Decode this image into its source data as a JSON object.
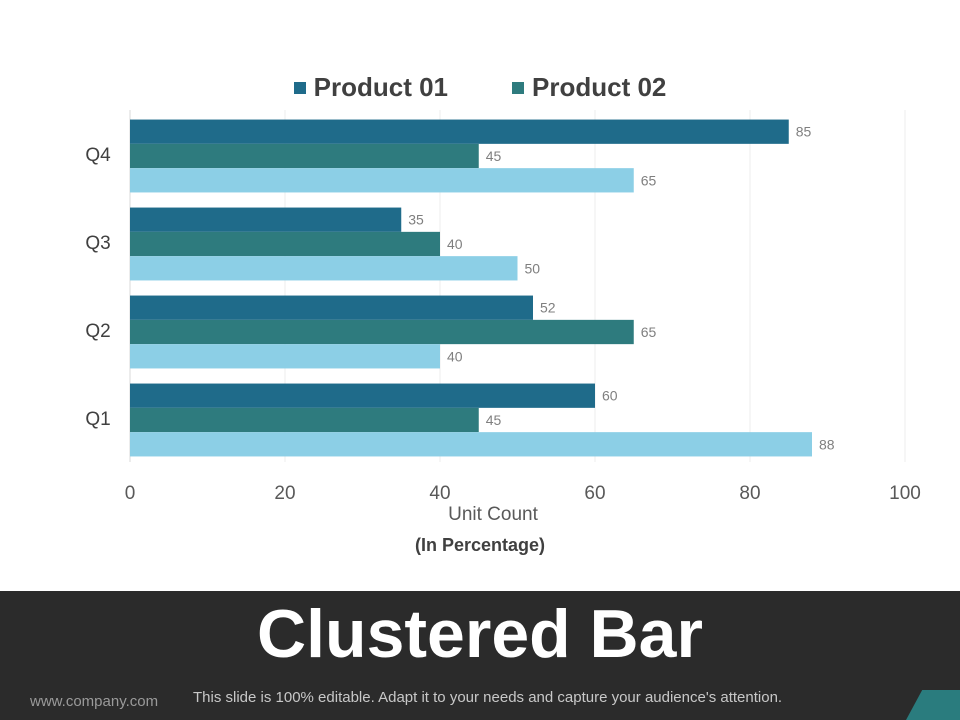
{
  "chart_data": {
    "type": "bar",
    "orientation": "horizontal",
    "categories": [
      "Q4",
      "Q3",
      "Q2",
      "Q1"
    ],
    "series": [
      {
        "name": "Product 01",
        "color": "#1f6b8a",
        "values": [
          85,
          35,
          52,
          60
        ]
      },
      {
        "name": "Product 02",
        "color": "#2e7b7e",
        "values": [
          45,
          40,
          65,
          45
        ]
      },
      {
        "name": "",
        "color": "#8ccfe6",
        "values": [
          65,
          50,
          40,
          88
        ]
      }
    ],
    "xlabel": "Unit Count",
    "xsublabel": "(In Percentage)",
    "xlim": [
      0,
      100
    ],
    "xticks": [
      "0",
      "20",
      "40",
      "60",
      "80",
      "100"
    ],
    "legend_position": "top-center",
    "grid": true
  },
  "legend": [
    {
      "label": "Product 01",
      "color": "#1f6b8a"
    },
    {
      "label": "Product 02",
      "color": "#2e7b7e"
    }
  ],
  "slide": {
    "title": "Clustered Bar",
    "website": "www.company.com",
    "note": "This slide is 100% editable. Adapt it to your needs and capture your audience's attention."
  }
}
